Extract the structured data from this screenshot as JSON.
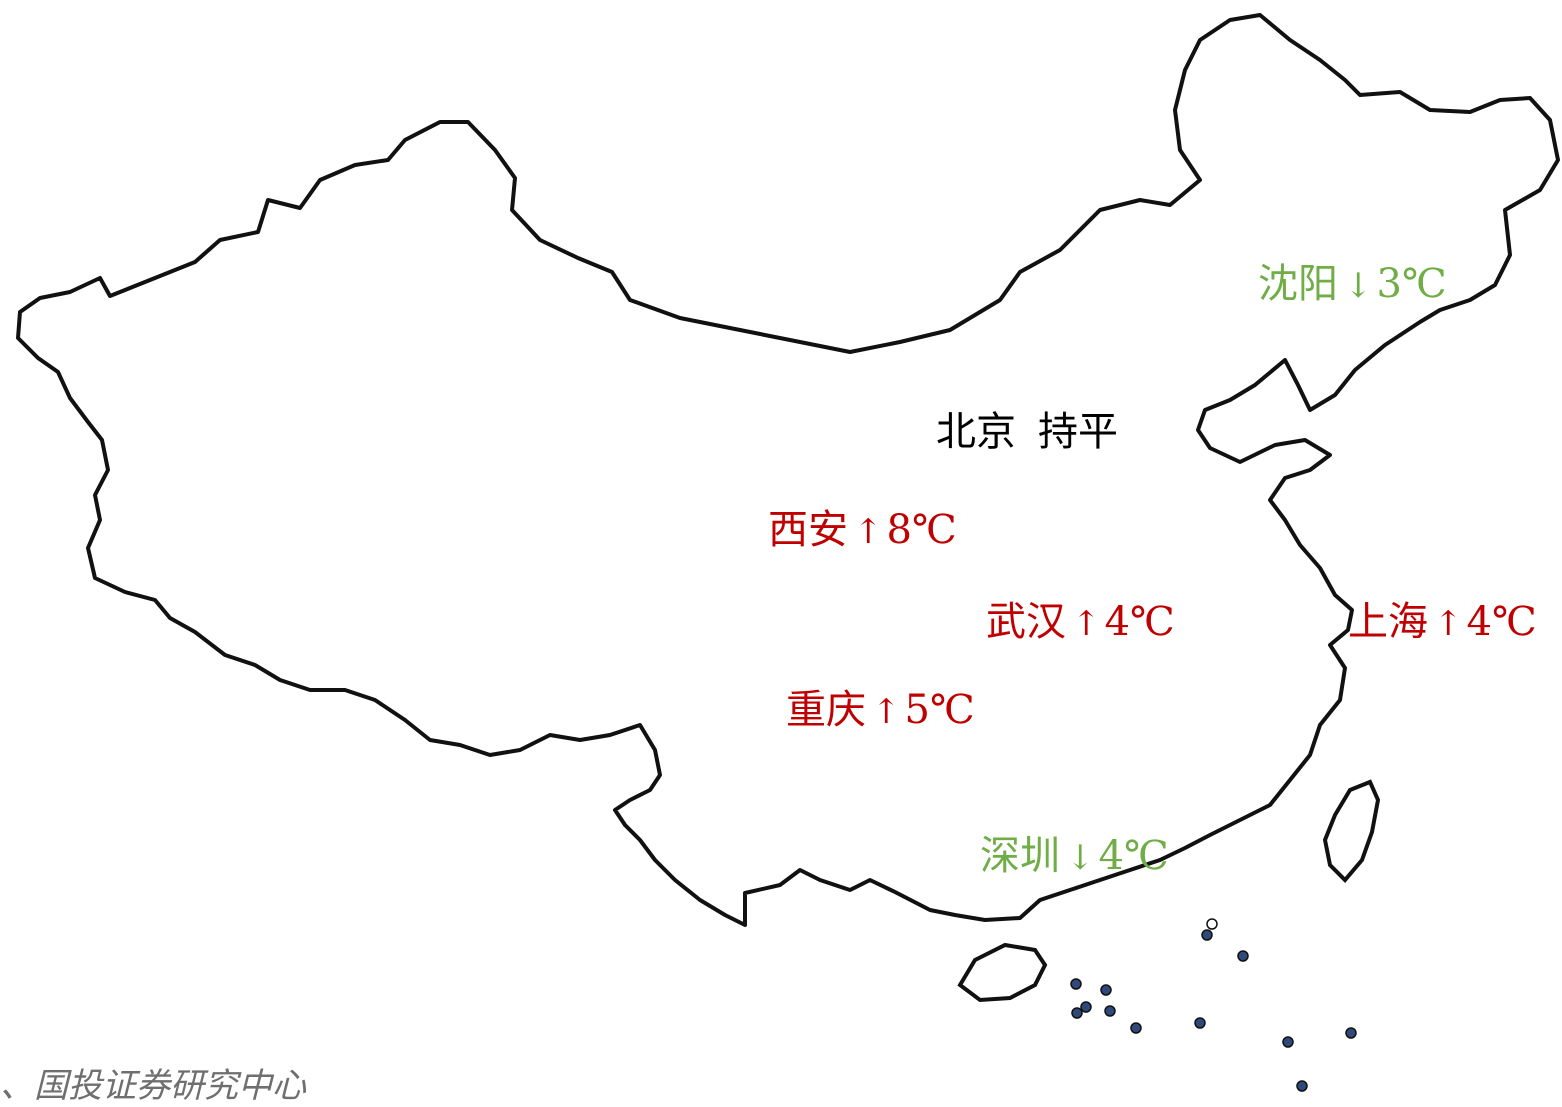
{
  "map": {
    "colors": {
      "border": "#111111",
      "land": "#ffffff",
      "rise": "#c00000",
      "fall": "#70ad47",
      "flat": "#000000",
      "island_dot": "#2f4a7a"
    }
  },
  "cities": [
    {
      "id": "beijing",
      "name": "北京",
      "change": "持平",
      "direction": "flat"
    },
    {
      "id": "shenyang",
      "name": "沈阳",
      "arrow": "↓",
      "change": "3℃",
      "direction": "fall"
    },
    {
      "id": "xian",
      "name": "西安",
      "arrow": "↑",
      "change": "8℃",
      "direction": "rise"
    },
    {
      "id": "wuhan",
      "name": "武汉",
      "arrow": "↑",
      "change": "4℃",
      "direction": "rise"
    },
    {
      "id": "shanghai",
      "name": "上海",
      "arrow": "↑",
      "change": "4℃",
      "direction": "rise"
    },
    {
      "id": "chongqing",
      "name": "重庆",
      "arrow": "↑",
      "change": "5℃",
      "direction": "rise"
    },
    {
      "id": "shenzhen",
      "name": "深圳",
      "arrow": "↓",
      "change": "4℃",
      "direction": "fall"
    }
  ],
  "source": {
    "text": "、国投证券研究中心"
  }
}
